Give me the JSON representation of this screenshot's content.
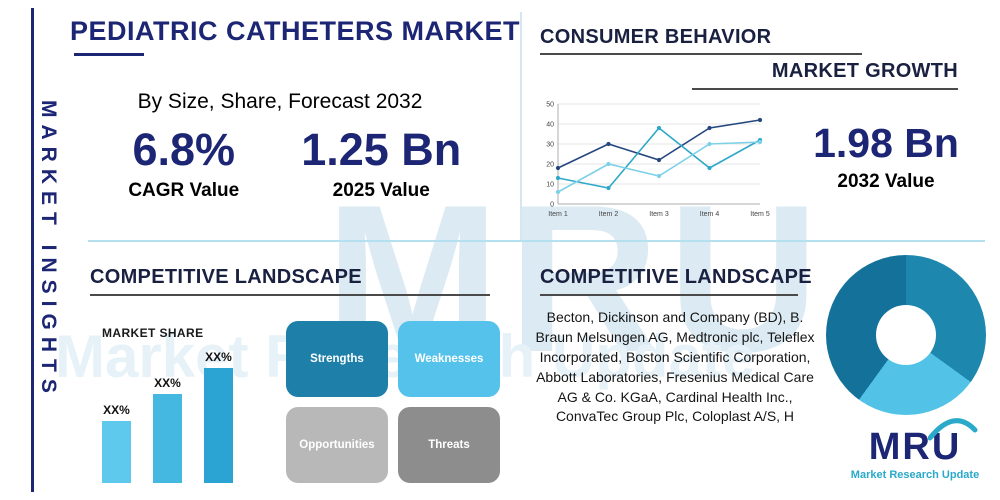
{
  "meta": {
    "brand_navy": "#1c2674",
    "brand_teal": "#2aa9c9",
    "light_blue": "#54c2ea",
    "divider_blue": "#b5e0f0"
  },
  "sidebar": {
    "label": "MARKET INSIGHTS"
  },
  "header": {
    "title": "PEDIATRIC CATHETERS MARKET",
    "subtitle": "By Size, Share, Forecast 2032"
  },
  "stats": {
    "cagr": {
      "value": "6.8%",
      "label": "CAGR Value"
    },
    "base": {
      "value": "1.25 Bn",
      "label": "2025 Value"
    },
    "forecast": {
      "value": "1.98 Bn",
      "label": "2032 Value"
    }
  },
  "sections": {
    "consumer_behavior": "CONSUMER BEHAVIOR",
    "market_growth": "MARKET GROWTH",
    "competitive_landscape_left": "COMPETITIVE LANDSCAPE",
    "competitive_landscape_right": "COMPETITIVE LANDSCAPE",
    "market_share": "MARKET SHARE"
  },
  "swot": {
    "items": [
      {
        "label": "Strengths",
        "color": "#1e7fa9"
      },
      {
        "label": "Weaknesses",
        "color": "#54c2ea"
      },
      {
        "label": "Opportunities",
        "color": "#b8b8b8"
      },
      {
        "label": "Threats",
        "color": "#8d8d8d"
      }
    ]
  },
  "companies": {
    "text": "Becton, Dickinson and Company (BD), B. Braun Melsungen AG, Medtronic plc, Teleflex Incorporated, Boston Scientific Corporation, Abbott Laboratories, Fresenius Medical Care AG & Co. KGaA, Cardinal Health Inc., ConvaTec Group Plc, Coloplast A/S, H"
  },
  "watermark": {
    "logo": "MRU",
    "text": "Market Research Update"
  },
  "logo": {
    "name": "MRU",
    "tagline": "Market Research Update"
  },
  "chart_data": [
    {
      "type": "line",
      "title": "MARKET GROWTH",
      "x": [
        "Item 1",
        "Item 2",
        "Item 3",
        "Item 4",
        "Item 5"
      ],
      "series": [
        {
          "name": "series-navy",
          "color": "#25477f",
          "values": [
            18,
            30,
            22,
            38,
            42
          ]
        },
        {
          "name": "series-teal",
          "color": "#2fa8c8",
          "values": [
            13,
            8,
            38,
            18,
            32
          ]
        },
        {
          "name": "series-light-blue",
          "color": "#7cd1e8",
          "values": [
            6,
            20,
            14,
            30,
            31
          ]
        }
      ],
      "ylim": [
        0,
        50
      ],
      "yticks": [
        0,
        10,
        20,
        30,
        40,
        50
      ],
      "xlabel": "",
      "ylabel": "",
      "grid": true,
      "legend": "none"
    },
    {
      "type": "bar",
      "title": "MARKET SHARE",
      "categories": [
        "XX%",
        "XX%",
        "XX%"
      ],
      "values": [
        35,
        50,
        65
      ],
      "colors": [
        "#5ec9ec",
        "#45b8e2",
        "#2ba4d4"
      ],
      "ylim": [
        0,
        70
      ],
      "xlabel": "",
      "ylabel": ""
    },
    {
      "type": "pie",
      "style": "donut",
      "values": [
        35,
        25,
        40
      ],
      "colors": [
        "#1d87ae",
        "#52c3e6",
        "#14729a"
      ],
      "labels": [
        "segment-1",
        "segment-2",
        "segment-3"
      ]
    }
  ]
}
